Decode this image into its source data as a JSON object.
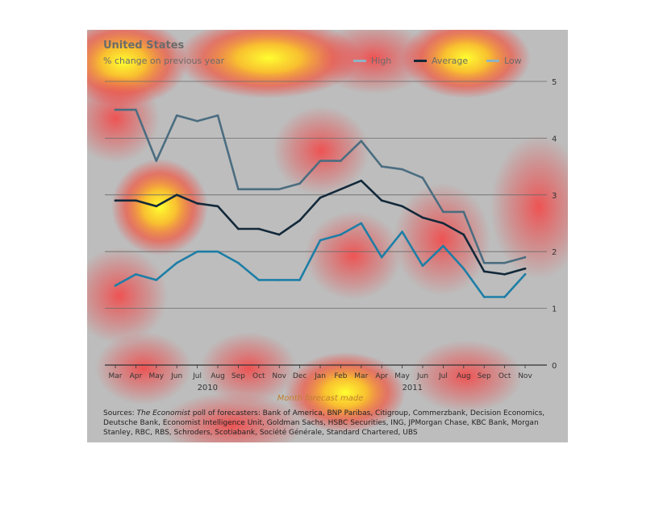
{
  "chart_data": {
    "type": "line",
    "title": "United States",
    "subtitle": "% change on previous year",
    "xlabel": "Month forecast made",
    "ylabel": "",
    "ylim": [
      0,
      5
    ],
    "yticks": [
      0,
      1,
      2,
      3,
      4,
      5
    ],
    "grid": true,
    "legend_placement": "top-right",
    "categories": [
      "Mar",
      "Apr",
      "May",
      "Jun",
      "Jul",
      "Aug",
      "Sep",
      "Oct",
      "Nov",
      "Dec",
      "Jan",
      "Feb",
      "Mar",
      "Apr",
      "May",
      "Jun",
      "Jul",
      "Aug",
      "Sep",
      "Oct",
      "Nov"
    ],
    "year_labels": [
      {
        "label": "2010",
        "category_index": 5
      },
      {
        "label": "2011",
        "category_index": 15
      }
    ],
    "series": [
      {
        "name": "High",
        "color": "#4b6d80",
        "values": [
          4.5,
          4.5,
          3.6,
          4.4,
          4.3,
          4.4,
          3.1,
          3.1,
          3.1,
          3.2,
          3.6,
          3.6,
          3.95,
          3.5,
          3.45,
          3.3,
          2.7,
          2.7,
          1.8,
          1.8,
          1.9
        ]
      },
      {
        "name": "Average",
        "color": "#13293a",
        "values": [
          2.9,
          2.9,
          2.8,
          3.0,
          2.85,
          2.8,
          2.4,
          2.4,
          2.3,
          2.55,
          2.95,
          3.1,
          3.25,
          2.9,
          2.8,
          2.6,
          2.5,
          2.3,
          1.65,
          1.6,
          1.7
        ]
      },
      {
        "name": "Low",
        "color": "#1d7ea6",
        "values": [
          1.4,
          1.6,
          1.5,
          1.8,
          2.0,
          2.0,
          1.8,
          1.5,
          1.5,
          1.5,
          2.2,
          2.3,
          2.5,
          1.9,
          2.35,
          1.75,
          2.1,
          1.7,
          1.2,
          1.2,
          1.6
        ]
      }
    ]
  },
  "legend_swatch_colors": {
    "High": "#8fb3c4",
    "Average": "#13293a",
    "Low": "#8fb3c4"
  },
  "sources": {
    "prefix": "Sources: ",
    "publication": "The Economist",
    "text": " poll of forecasters: Bank of America, BNP Paribas, Citigroup, Commerzbank, Decision Economics, Deutsche Bank, Economist Intelligence Unit, Goldman Sachs, HSBC Securities, ING, JPMorgan Chase, KBC Bank, Morgan Stanley, RBC, RBS, Schroders, Scotiabank, Société Générale, Standard Chartered, UBS"
  }
}
